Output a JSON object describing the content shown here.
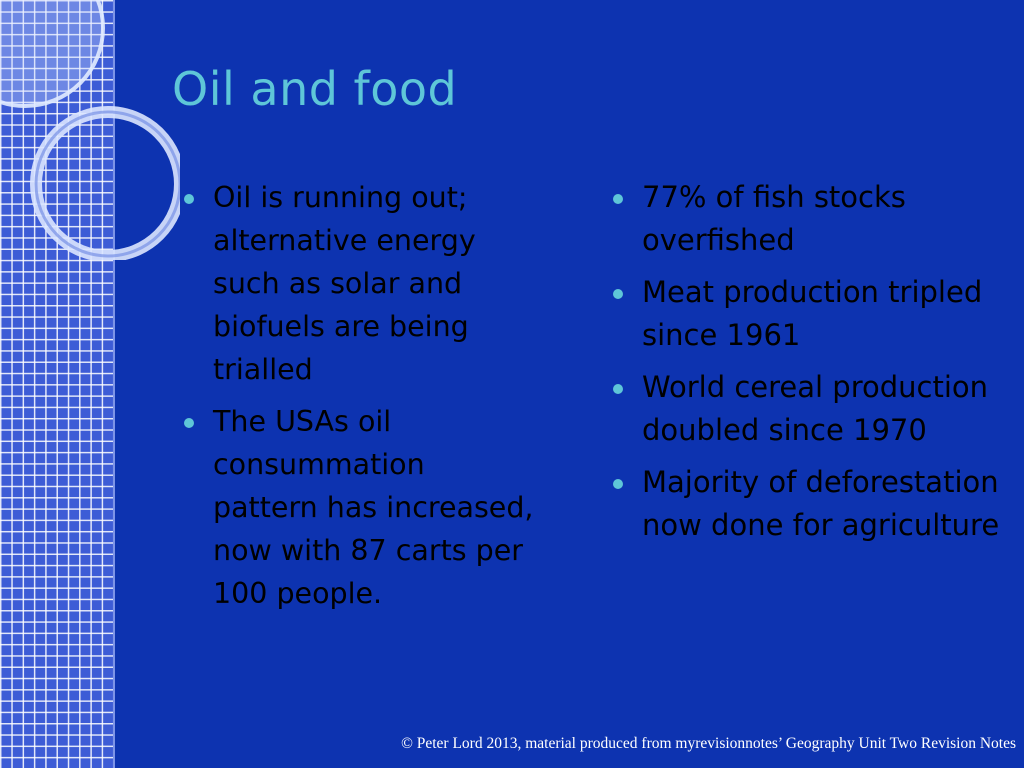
{
  "slide": {
    "title": "Oil and food",
    "left_bullets": [
      "Oil is running out; alternative energy such as solar and biofuels are being trialled",
      "The USAs oil consummation pattern has increased, now with 87 carts per 100 people."
    ],
    "right_bullets": [
      "77% of fish stocks overfished",
      "Meat production tripled since 1961",
      "World cereal production doubled since 1970",
      "Majority of deforestation now done for agriculture"
    ],
    "footer": "© Peter Lord 2013, material produced from myrevisionnotes’ Geography Unit Two Revision Notes"
  },
  "colors": {
    "background": "#0d33b0",
    "title": "#5ec6d8",
    "bullet_marker": "#5ec6d8",
    "body_text": "#000000",
    "footer_text": "#ffffff"
  }
}
